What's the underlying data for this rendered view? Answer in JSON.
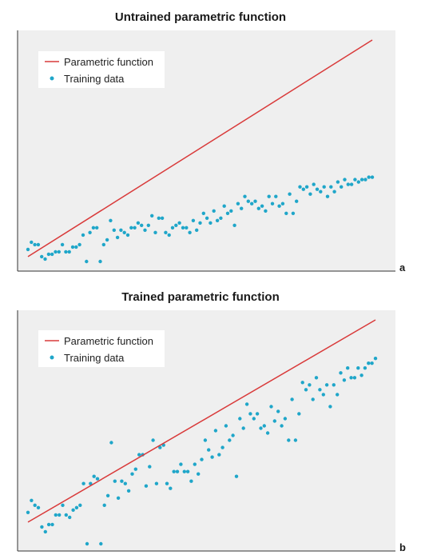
{
  "chart_data": [
    {
      "type": "scatter",
      "title": "Untrained parametric function",
      "panel_label": "a",
      "xlabel": "",
      "ylabel": "",
      "xlim": [
        0,
        100
      ],
      "ylim": [
        0,
        100
      ],
      "grid": false,
      "legend_position": "top-left",
      "colors": {
        "line": "#d93a3a",
        "points": "#1fa6c9",
        "background": "#efefef"
      },
      "series": [
        {
          "name": "Parametric function",
          "kind": "line",
          "x": [
            0,
            100
          ],
          "y": [
            6,
            96
          ]
        },
        {
          "name": "Training data",
          "kind": "scatter",
          "points": [
            [
              0,
              9
            ],
            [
              1,
              12
            ],
            [
              2,
              11
            ],
            [
              3,
              11
            ],
            [
              4,
              6
            ],
            [
              5,
              5
            ],
            [
              6,
              7
            ],
            [
              7,
              7
            ],
            [
              8,
              8
            ],
            [
              9,
              8
            ],
            [
              10,
              11
            ],
            [
              11,
              8
            ],
            [
              12,
              8
            ],
            [
              13,
              10
            ],
            [
              14,
              10
            ],
            [
              15,
              11
            ],
            [
              16,
              15
            ],
            [
              17,
              4
            ],
            [
              18,
              16
            ],
            [
              19,
              18
            ],
            [
              20,
              18
            ],
            [
              21,
              4
            ],
            [
              22,
              11
            ],
            [
              23,
              13
            ],
            [
              24,
              21
            ],
            [
              25,
              17
            ],
            [
              26,
              14
            ],
            [
              27,
              17
            ],
            [
              28,
              16
            ],
            [
              29,
              15
            ],
            [
              30,
              18
            ],
            [
              31,
              18
            ],
            [
              32,
              20
            ],
            [
              33,
              19
            ],
            [
              34,
              17
            ],
            [
              35,
              19
            ],
            [
              36,
              23
            ],
            [
              37,
              16
            ],
            [
              38,
              22
            ],
            [
              39,
              22
            ],
            [
              40,
              16
            ],
            [
              41,
              15
            ],
            [
              42,
              18
            ],
            [
              43,
              19
            ],
            [
              44,
              20
            ],
            [
              45,
              18
            ],
            [
              46,
              18
            ],
            [
              47,
              16
            ],
            [
              48,
              21
            ],
            [
              49,
              17
            ],
            [
              50,
              20
            ],
            [
              51,
              24
            ],
            [
              52,
              22
            ],
            [
              53,
              20
            ],
            [
              54,
              25
            ],
            [
              55,
              21
            ],
            [
              56,
              22
            ],
            [
              57,
              27
            ],
            [
              58,
              24
            ],
            [
              59,
              25
            ],
            [
              60,
              19
            ],
            [
              61,
              28
            ],
            [
              62,
              26
            ],
            [
              63,
              31
            ],
            [
              64,
              29
            ],
            [
              65,
              28
            ],
            [
              66,
              29
            ],
            [
              67,
              26
            ],
            [
              68,
              27
            ],
            [
              69,
              25
            ],
            [
              70,
              31
            ],
            [
              71,
              28
            ],
            [
              72,
              31
            ],
            [
              73,
              27
            ],
            [
              74,
              28
            ],
            [
              75,
              24
            ],
            [
              76,
              32
            ],
            [
              77,
              24
            ],
            [
              78,
              29
            ],
            [
              79,
              35
            ],
            [
              80,
              34
            ],
            [
              81,
              35
            ],
            [
              82,
              32
            ],
            [
              83,
              36
            ],
            [
              84,
              34
            ],
            [
              85,
              33
            ],
            [
              86,
              35
            ],
            [
              87,
              31
            ],
            [
              88,
              35
            ],
            [
              89,
              33
            ],
            [
              90,
              37
            ],
            [
              91,
              35
            ],
            [
              92,
              38
            ],
            [
              93,
              36
            ],
            [
              94,
              36
            ],
            [
              95,
              38
            ],
            [
              96,
              37
            ],
            [
              97,
              38
            ],
            [
              98,
              38
            ],
            [
              99,
              39
            ],
            [
              100,
              39
            ]
          ]
        }
      ]
    },
    {
      "type": "scatter",
      "title": "Trained parametric function",
      "panel_label": "b",
      "xlabel": "",
      "ylabel": "",
      "xlim": [
        0,
        100
      ],
      "ylim": [
        0,
        100
      ],
      "grid": false,
      "legend_position": "top-left",
      "colors": {
        "line": "#d93a3a",
        "points": "#1fa6c9",
        "background": "#efefef"
      },
      "series": [
        {
          "name": "Parametric function",
          "kind": "line",
          "x": [
            0,
            100
          ],
          "y": [
            12,
            96
          ]
        },
        {
          "name": "Training data",
          "kind": "scatter",
          "points": [
            [
              0,
              16
            ],
            [
              1,
              21
            ],
            [
              2,
              19
            ],
            [
              3,
              18
            ],
            [
              4,
              10
            ],
            [
              5,
              8
            ],
            [
              6,
              11
            ],
            [
              7,
              11
            ],
            [
              8,
              15
            ],
            [
              9,
              15
            ],
            [
              10,
              19
            ],
            [
              11,
              15
            ],
            [
              12,
              14
            ],
            [
              13,
              17
            ],
            [
              14,
              18
            ],
            [
              15,
              19
            ],
            [
              16,
              28
            ],
            [
              17,
              3
            ],
            [
              18,
              28
            ],
            [
              19,
              31
            ],
            [
              20,
              30
            ],
            [
              21,
              3
            ],
            [
              22,
              19
            ],
            [
              23,
              23
            ],
            [
              24,
              45
            ],
            [
              25,
              29
            ],
            [
              26,
              22
            ],
            [
              27,
              29
            ],
            [
              28,
              28
            ],
            [
              29,
              25
            ],
            [
              30,
              32
            ],
            [
              31,
              34
            ],
            [
              32,
              40
            ],
            [
              33,
              40
            ],
            [
              34,
              27
            ],
            [
              35,
              35
            ],
            [
              36,
              46
            ],
            [
              37,
              28
            ],
            [
              38,
              43
            ],
            [
              39,
              44
            ],
            [
              40,
              28
            ],
            [
              41,
              26
            ],
            [
              42,
              33
            ],
            [
              43,
              33
            ],
            [
              44,
              36
            ],
            [
              45,
              33
            ],
            [
              46,
              33
            ],
            [
              47,
              29
            ],
            [
              48,
              36
            ],
            [
              49,
              32
            ],
            [
              50,
              38
            ],
            [
              51,
              46
            ],
            [
              52,
              42
            ],
            [
              53,
              39
            ],
            [
              54,
              50
            ],
            [
              55,
              40
            ],
            [
              56,
              43
            ],
            [
              57,
              52
            ],
            [
              58,
              46
            ],
            [
              59,
              48
            ],
            [
              60,
              31
            ],
            [
              61,
              55
            ],
            [
              62,
              51
            ],
            [
              63,
              61
            ],
            [
              64,
              57
            ],
            [
              65,
              55
            ],
            [
              66,
              57
            ],
            [
              67,
              51
            ],
            [
              68,
              52
            ],
            [
              69,
              49
            ],
            [
              70,
              60
            ],
            [
              71,
              54
            ],
            [
              72,
              58
            ],
            [
              73,
              52
            ],
            [
              74,
              55
            ],
            [
              75,
              46
            ],
            [
              76,
              63
            ],
            [
              77,
              46
            ],
            [
              78,
              57
            ],
            [
              79,
              70
            ],
            [
              80,
              67
            ],
            [
              81,
              69
            ],
            [
              82,
              63
            ],
            [
              83,
              72
            ],
            [
              84,
              67
            ],
            [
              85,
              65
            ],
            [
              86,
              69
            ],
            [
              87,
              60
            ],
            [
              88,
              69
            ],
            [
              89,
              65
            ],
            [
              90,
              74
            ],
            [
              91,
              71
            ],
            [
              92,
              76
            ],
            [
              93,
              72
            ],
            [
              94,
              72
            ],
            [
              95,
              76
            ],
            [
              96,
              73
            ],
            [
              97,
              76
            ],
            [
              98,
              78
            ],
            [
              99,
              78
            ],
            [
              100,
              80
            ]
          ]
        }
      ]
    }
  ]
}
